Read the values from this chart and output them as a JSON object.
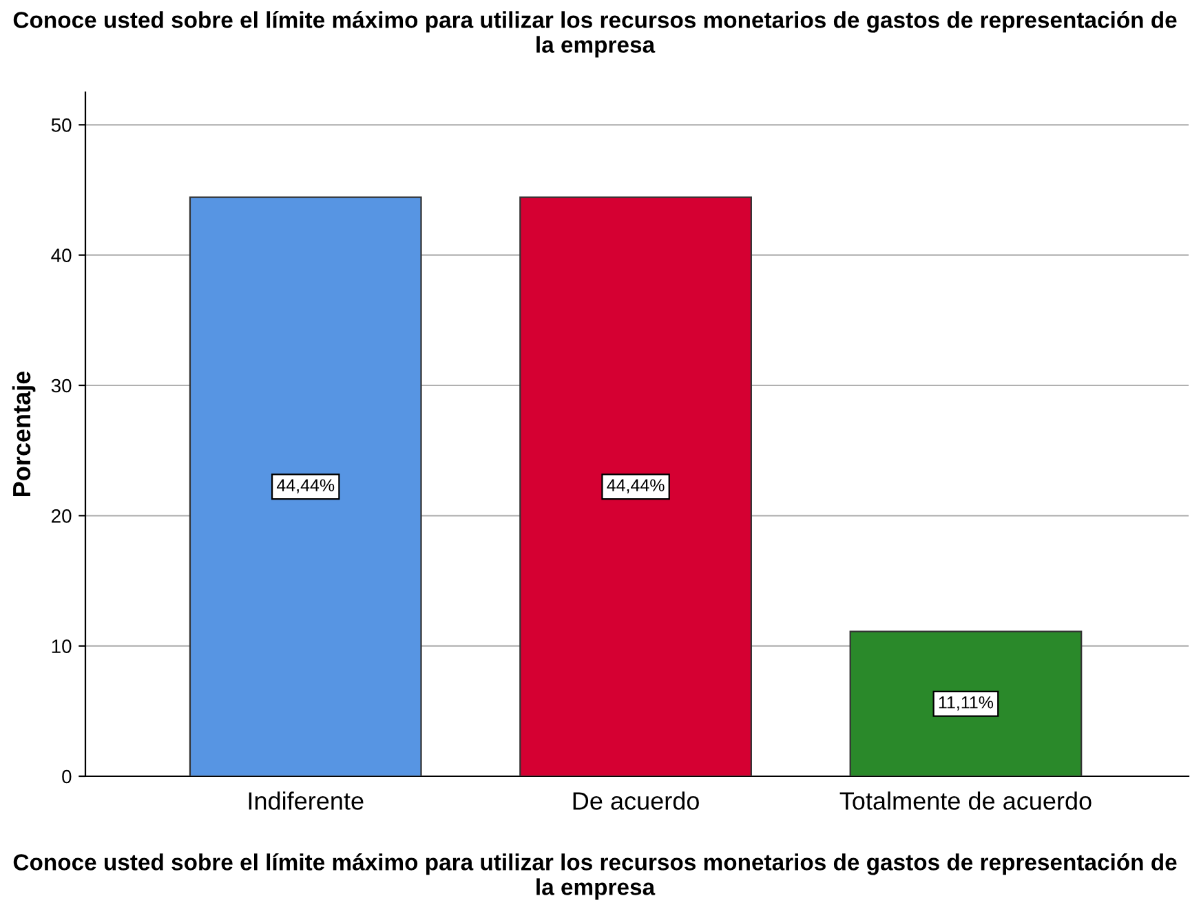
{
  "chart_data": {
    "type": "bar",
    "title": "Conoce usted sobre el límite máximo para utilizar los recursos monetarios de gastos de representación de la empresa",
    "xlabel": "Conoce usted sobre el límite máximo para utilizar los recursos monetarios de gastos de representación de la empresa",
    "ylabel": "Porcentaje",
    "categories": [
      "Indiferente",
      "De acuerdo",
      "Totalmente de acuerdo"
    ],
    "values": [
      44.44,
      44.44,
      11.11
    ],
    "colors": [
      "#5795e3",
      "#d50032",
      "#2a892a"
    ],
    "value_labels": [
      "44,44%",
      "44,44%",
      "11,11%"
    ],
    "ylim": [
      0,
      52.5
    ],
    "yticks": [
      0,
      10,
      20,
      30,
      40,
      50
    ],
    "grid": "y"
  }
}
